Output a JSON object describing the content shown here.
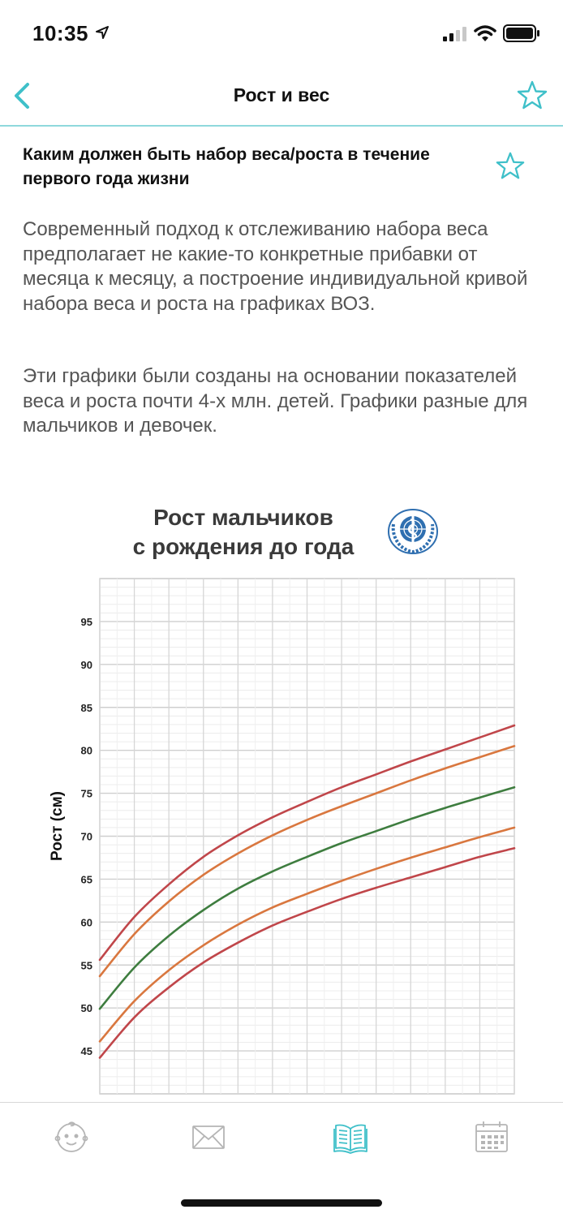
{
  "status": {
    "time": "10:35"
  },
  "nav": {
    "title": "Рост и вес",
    "back_icon": "chevron-left-icon",
    "favorite_icon": "star-outline-icon"
  },
  "article": {
    "title": "Каким должен быть набор веса/роста в течение первого года жизни",
    "paragraphs": [
      "Современный подход к отслеживанию набора веса предполагает не какие-то конкретные прибавки от месяца к месяцу, а построение индивидуальной кривой набора веса и роста на графиках ВОЗ.",
      "Эти графики были созданы на основании показателей веса и роста почти 4-х млн. детей. Графики разные для мальчиков и девочек."
    ]
  },
  "chart_header": {
    "line1": "Рост мальчиков",
    "line2": "с рождения до года"
  },
  "chart_data": {
    "type": "line",
    "title": "Рост мальчиков с рождения до года",
    "ylabel": "Рост (см)",
    "xlabel": "",
    "ylim": [
      40,
      100
    ],
    "xlim": [
      0,
      12
    ],
    "yticks": [
      45,
      50,
      55,
      60,
      65,
      70,
      75,
      80,
      85,
      90,
      95
    ],
    "grid": true,
    "x": [
      0,
      1,
      2,
      3,
      4,
      5,
      6,
      7,
      8,
      9,
      10,
      11,
      12
    ],
    "series": [
      {
        "color": "#c0464a",
        "values": [
          44.2,
          48.9,
          52.4,
          55.3,
          57.6,
          59.6,
          61.2,
          62.7,
          64.0,
          65.2,
          66.4,
          67.6,
          68.6
        ]
      },
      {
        "color": "#d9773f",
        "values": [
          46.1,
          50.8,
          54.4,
          57.3,
          59.7,
          61.7,
          63.3,
          64.8,
          66.2,
          67.5,
          68.7,
          69.9,
          71.0
        ]
      },
      {
        "color": "#3e7d3f",
        "values": [
          49.9,
          54.7,
          58.4,
          61.4,
          63.9,
          65.9,
          67.6,
          69.2,
          70.6,
          72.0,
          73.3,
          74.5,
          75.7
        ]
      },
      {
        "color": "#d9773f",
        "values": [
          53.7,
          58.6,
          62.4,
          65.5,
          68.0,
          70.1,
          71.9,
          73.5,
          75.0,
          76.5,
          77.9,
          79.2,
          80.5
        ]
      },
      {
        "color": "#c0464a",
        "values": [
          55.6,
          60.6,
          64.4,
          67.6,
          70.1,
          72.2,
          74.0,
          75.7,
          77.2,
          78.7,
          80.1,
          81.5,
          82.9
        ]
      }
    ]
  },
  "tabs": [
    {
      "icon": "baby-face-icon",
      "active": false
    },
    {
      "icon": "envelope-icon",
      "active": false
    },
    {
      "icon": "open-book-icon",
      "active": true
    },
    {
      "icon": "calendar-icon",
      "active": false
    }
  ],
  "colors": {
    "accent": "#3fc0c9",
    "text_secondary": "#555555",
    "inactive_icon": "#b5b5b5"
  }
}
